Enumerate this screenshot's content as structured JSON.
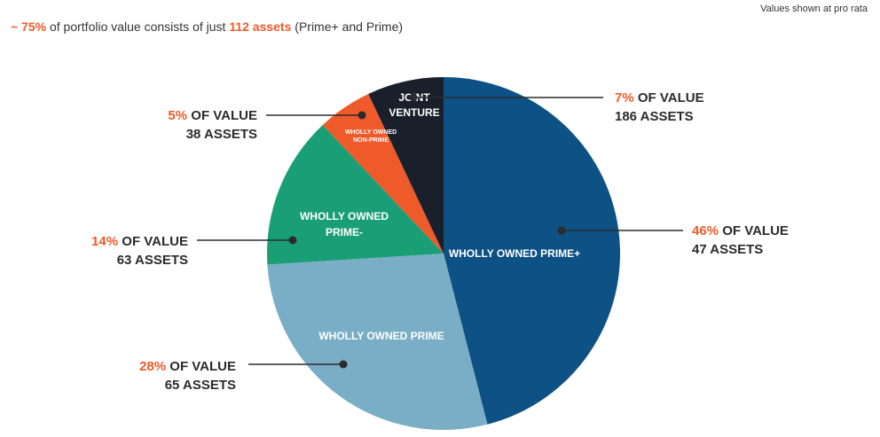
{
  "header": {
    "headline": {
      "prefix": "~ 75%",
      "text1": " of portfolio value consists of just ",
      "count": "112 assets",
      "text2": " (Prime+ and Prime)"
    },
    "note": "Values shown at pro rata"
  },
  "chart_data": {
    "type": "pie",
    "slices": [
      {
        "label": "WHOLLY OWNED PRIME+",
        "value": 46,
        "pct_text": "46%",
        "value_text": " OF VALUE",
        "assets_text": "47 ASSETS",
        "color": "#0e5185"
      },
      {
        "label": "WHOLLY OWNED PRIME",
        "value": 28,
        "pct_text": "28%",
        "value_text": " OF VALUE",
        "assets_text": "65 ASSETS",
        "color": "#79aec6"
      },
      {
        "label": "WHOLLY OWNED PRIME-",
        "value": 14,
        "pct_text": "14%",
        "value_text": " OF VALUE",
        "assets_text": "63 ASSETS",
        "color": "#1a9e76"
      },
      {
        "label": "WHOLLY OWNED NON-PRIME",
        "value": 5,
        "pct_text": "5%",
        "value_text": " OF VALUE",
        "assets_text": "38 ASSETS",
        "color": "#ee5a2a"
      },
      {
        "label": "JOINT VENTURE",
        "value": 7,
        "pct_text": "7%",
        "value_text": " OF VALUE",
        "assets_text": "186 ASSETS",
        "color": "#1a1f2c"
      }
    ],
    "colors": {
      "accent": "#ee5a2a",
      "text": "#2b2b2b"
    }
  }
}
